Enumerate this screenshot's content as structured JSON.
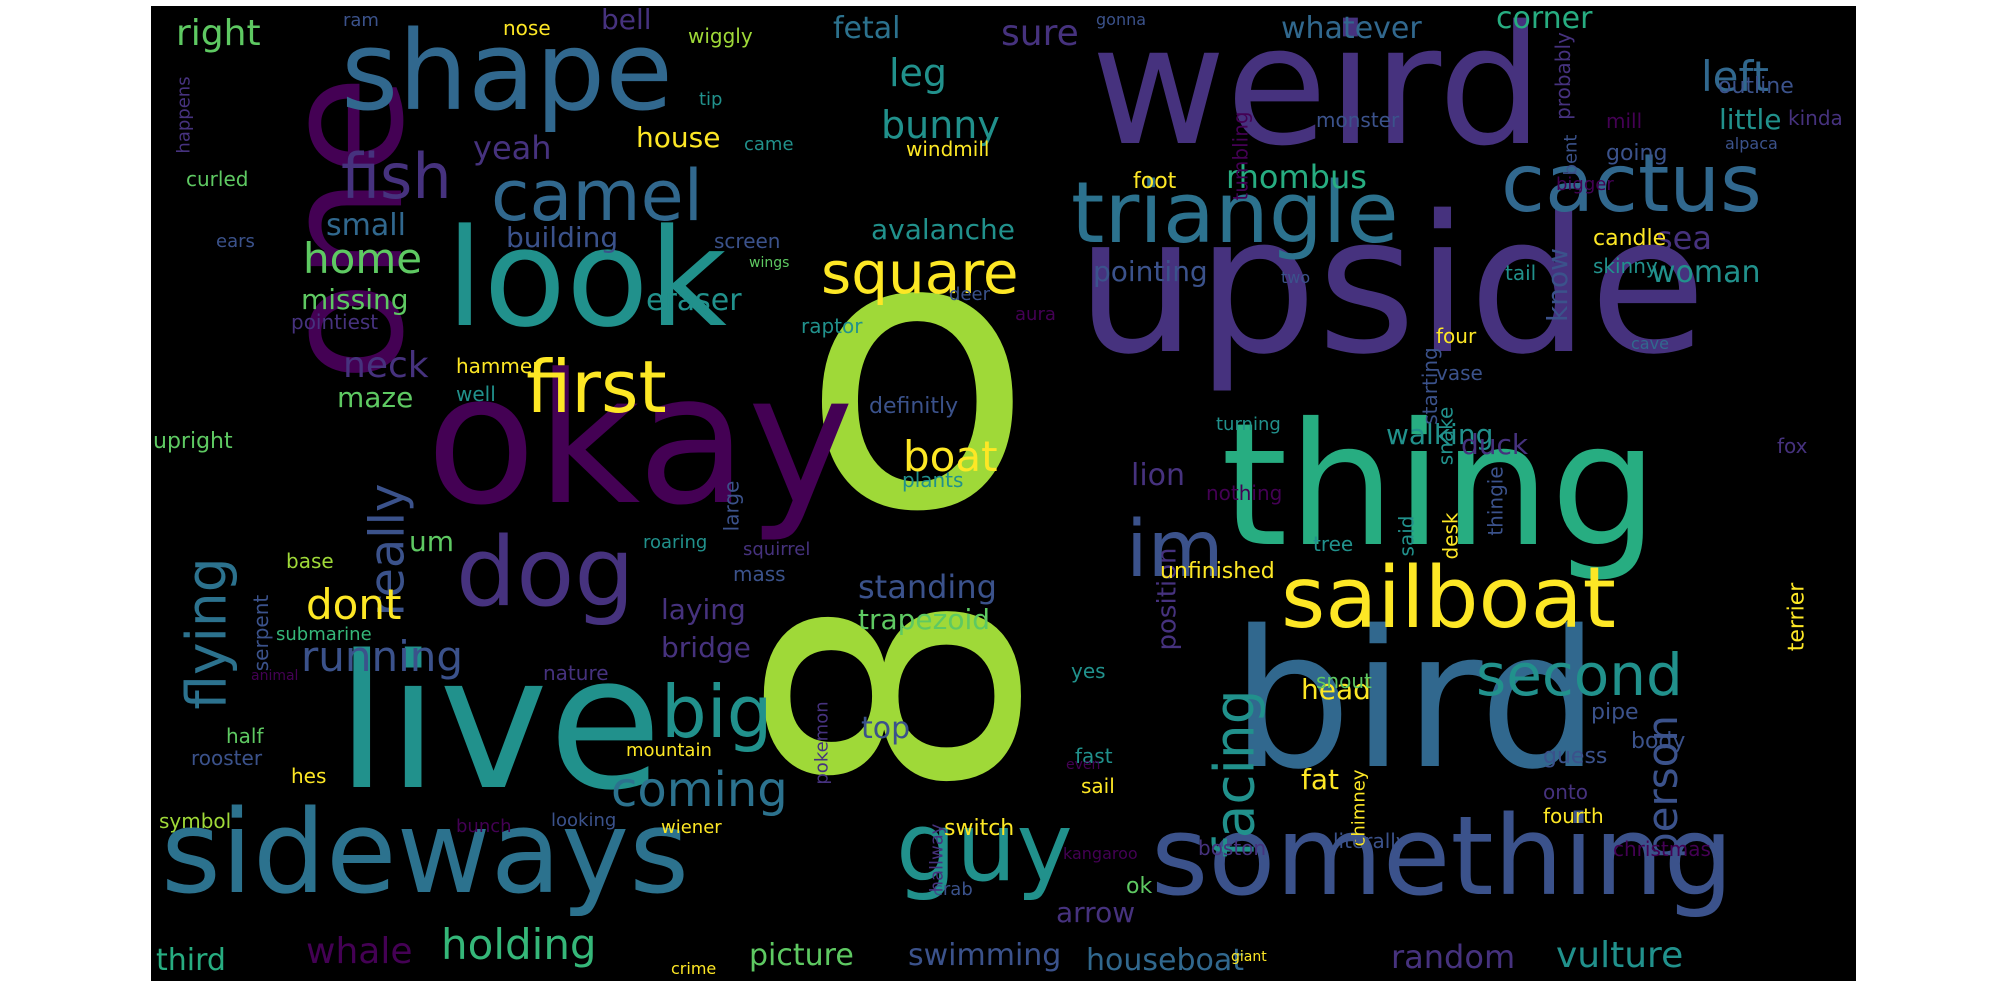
{
  "wordcloud": {
    "background": "#000000",
    "colormap": "viridis",
    "palette": {
      "purple": "#440154",
      "indigo": "#46327e",
      "violet": "#3b528b",
      "blue": "#31688e",
      "steel": "#2c728e",
      "teal": "#21918c",
      "green": "#27ad81",
      "emerald": "#35b779",
      "lime": "#5ec962",
      "chartreuse": "#9fd938",
      "yellow": "#fde725"
    },
    "words": [
      "o",
      "8",
      "weird",
      "upside",
      "thing",
      "okay",
      "live",
      "bird",
      "one",
      "shape",
      "sideways",
      "something",
      "look",
      "guy",
      "sailboat",
      "dog",
      "triangle",
      "cactus",
      "camel",
      "fish",
      "first",
      "square",
      "im",
      "big",
      "second",
      "facing",
      "flying",
      "really",
      "coming",
      "person",
      "home",
      "running",
      "boat",
      "dont",
      "left",
      "leg",
      "bunny",
      "right",
      "sure",
      "whatever",
      "corner",
      "fetal",
      "bell",
      "house",
      "yeah",
      "rhombus",
      "small",
      "building",
      "avalanche",
      "pointing",
      "missing",
      "eraser",
      "know",
      "sea",
      "woman",
      "neck",
      "maze",
      "hammer",
      "well",
      "standing",
      "position",
      "laying",
      "trapezoid",
      "bridge",
      "walking",
      "lion",
      "duck",
      "um",
      "head",
      "fat",
      "ok",
      "top",
      "arrow",
      "whale",
      "holding",
      "picture",
      "swimming",
      "houseboat",
      "random",
      "vulture",
      "third",
      "symbol",
      "hes",
      "submarine",
      "serpent",
      "base",
      "upright",
      "half",
      "rooster",
      "mountain",
      "wiener",
      "looking",
      "bunch",
      "switch",
      "sail",
      "fast",
      "yes",
      "crab",
      "hallway",
      "pokemon",
      "chimney",
      "snout",
      "unfinished",
      "nothing",
      "tree",
      "said",
      "desk",
      "thingie",
      "snake",
      "starting",
      "turning",
      "definitly",
      "plants",
      "large",
      "roaring",
      "squirrel",
      "mass",
      "little",
      "outline",
      "kinda",
      "alpaca",
      "mill",
      "bigger",
      "bent",
      "going",
      "probably",
      "monster",
      "tumbling",
      "foot",
      "candle",
      "skinny",
      "tail",
      "two",
      "four",
      "vase",
      "cave",
      "fox",
      "terrier",
      "guess",
      "onto",
      "fourth",
      "pipe",
      "body",
      "literally",
      "boston",
      "christmas",
      "kangaroo",
      "even",
      "giant",
      "crime",
      "screen",
      "wings",
      "deer",
      "aura",
      "raptor",
      "pointiest",
      "ears",
      "curled",
      "happens",
      "ram",
      "nose",
      "wiggly",
      "gonna",
      "tip",
      "came",
      "windmill",
      "animal",
      "nature"
    ]
  }
}
